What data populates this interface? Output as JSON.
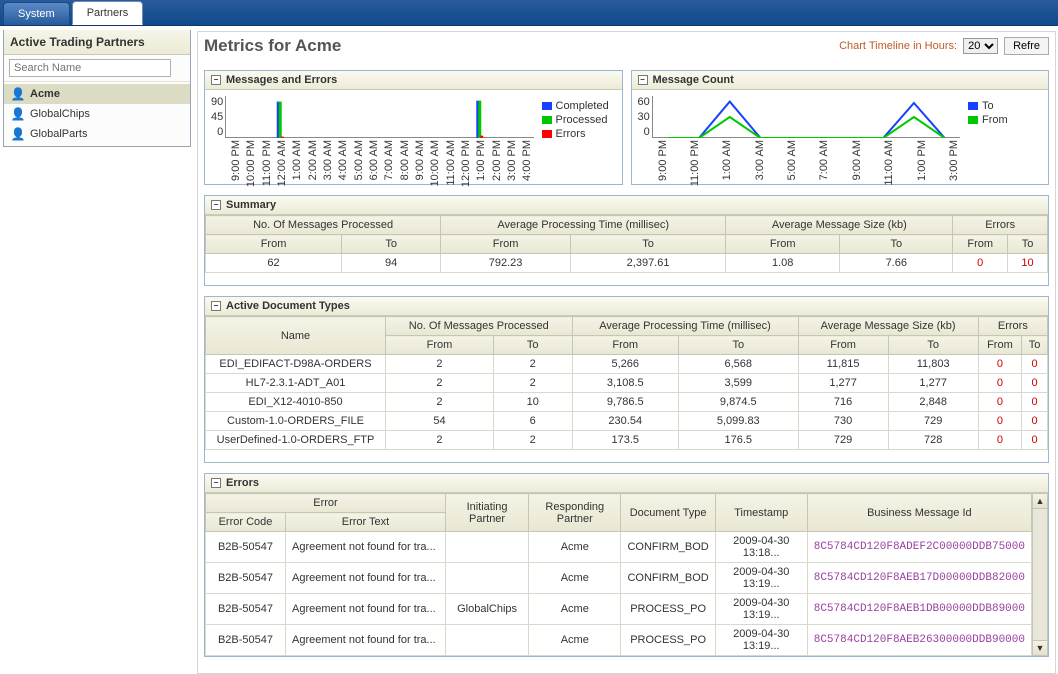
{
  "tabs": {
    "system": "System",
    "partners": "Partners"
  },
  "sidebar": {
    "title": "Active Trading Partners",
    "search_placeholder": "Search Name",
    "items": [
      {
        "label": "Acme",
        "selected": true
      },
      {
        "label": "GlobalChips",
        "selected": false
      },
      {
        "label": "GlobalParts",
        "selected": false
      }
    ]
  },
  "header": {
    "title": "Metrics for Acme",
    "timeline_label": "Chart Timeline in Hours:",
    "timeline_value": "20",
    "refresh_label": "Refre"
  },
  "charts": {
    "messages_errors": {
      "title": "Messages and Errors",
      "type": "bar",
      "y_ticks": [
        90,
        45,
        0
      ],
      "ylim": [
        0,
        90
      ],
      "x_labels": [
        "9:00 PM",
        "10:00 PM",
        "11:00 PM",
        "12:00 AM",
        "1:00 AM",
        "2:00 AM",
        "3:00 AM",
        "4:00 AM",
        "5:00 AM",
        "6:00 AM",
        "7:00 AM",
        "8:00 AM",
        "9:00 AM",
        "10:00 AM",
        "11:00 AM",
        "12:00 PM",
        "1:00 PM",
        "2:00 PM",
        "3:00 PM",
        "4:00 PM"
      ],
      "series": [
        {
          "name": "Completed",
          "color": "#1840ff",
          "points": {
            "3": 78,
            "16": 80
          }
        },
        {
          "name": "Processed",
          "color": "#00c800",
          "points": {
            "3": 78,
            "16": 80
          }
        },
        {
          "name": "Errors",
          "color": "#ff0000",
          "points": {
            "3": 3,
            "16": 5
          }
        }
      ],
      "background": "#ffffff",
      "font_size": 9
    },
    "message_count": {
      "title": "Message Count",
      "type": "line",
      "y_ticks": [
        60,
        30,
        0
      ],
      "ylim": [
        0,
        60
      ],
      "x_labels": [
        "9:00 PM",
        "11:00 PM",
        "1:00 AM",
        "3:00 AM",
        "5:00 AM",
        "7:00 AM",
        "9:00 AM",
        "11:00 AM",
        "1:00 PM",
        "3:00 PM"
      ],
      "series": [
        {
          "name": "To",
          "color": "#1840ff",
          "values": [
            0,
            0,
            52,
            0,
            0,
            0,
            0,
            0,
            50,
            0
          ]
        },
        {
          "name": "From",
          "color": "#00c800",
          "values": [
            0,
            0,
            30,
            0,
            0,
            0,
            0,
            0,
            30,
            0
          ]
        }
      ],
      "background": "#ffffff",
      "font_size": 9
    }
  },
  "summary": {
    "title": "Summary",
    "group_headers": [
      "No. Of Messages Processed",
      "Average Processing Time (millisec)",
      "Average Message Size (kb)",
      "Errors"
    ],
    "sub_headers": [
      "From",
      "To",
      "From",
      "To",
      "From",
      "To",
      "From",
      "To"
    ],
    "row": [
      "62",
      "94",
      "792.23",
      "2,397.61",
      "1.08",
      "7.66",
      "0",
      "10"
    ],
    "red_cols": [
      6,
      7
    ]
  },
  "doc_types": {
    "title": "Active Document Types",
    "group_headers": [
      "Name",
      "No. Of Messages Processed",
      "Average Processing Time (millisec)",
      "Average Message Size (kb)",
      "Errors"
    ],
    "sub_headers": [
      "",
      "From",
      "To",
      "From",
      "To",
      "From",
      "To",
      "From",
      "To"
    ],
    "rows": [
      [
        "EDI_EDIFACT-D98A-ORDERS",
        "2",
        "2",
        "5,266",
        "6,568",
        "11,815",
        "11,803",
        "0",
        "0"
      ],
      [
        "HL7-2.3.1-ADT_A01",
        "2",
        "2",
        "3,108.5",
        "3,599",
        "1,277",
        "1,277",
        "0",
        "0"
      ],
      [
        "EDI_X12-4010-850",
        "2",
        "10",
        "9,786.5",
        "9,874.5",
        "716",
        "2,848",
        "0",
        "0"
      ],
      [
        "Custom-1.0-ORDERS_FILE",
        "54",
        "6",
        "230.54",
        "5,099.83",
        "730",
        "729",
        "0",
        "0"
      ],
      [
        "UserDefined-1.0-ORDERS_FTP",
        "2",
        "2",
        "173.5",
        "176.5",
        "729",
        "728",
        "0",
        "0"
      ]
    ],
    "red_cols": [
      7,
      8
    ]
  },
  "errors": {
    "title": "Errors",
    "group_headers": [
      "Error",
      "Initiating Partner",
      "Responding Partner",
      "Document Type",
      "Timestamp",
      "Business Message Id"
    ],
    "sub_headers": [
      "Error Code",
      "Error Text"
    ],
    "rows": [
      [
        "B2B-50547",
        "Agreement not found for tra...",
        "",
        "Acme",
        "CONFIRM_BOD",
        "2009-04-30 13:18...",
        "8C5784CD120F8ADEF2C00000DDB75000"
      ],
      [
        "B2B-50547",
        "Agreement not found for tra...",
        "",
        "Acme",
        "CONFIRM_BOD",
        "2009-04-30 13:19...",
        "8C5784CD120F8AEB17D00000DDB82000"
      ],
      [
        "B2B-50547",
        "Agreement not found for tra...",
        "GlobalChips",
        "Acme",
        "PROCESS_PO",
        "2009-04-30 13:19...",
        "8C5784CD120F8AEB1DB00000DDB89000"
      ],
      [
        "B2B-50547",
        "Agreement not found for tra...",
        "",
        "Acme",
        "PROCESS_PO",
        "2009-04-30 13:19...",
        "8C5784CD120F8AEB26300000DDB90000"
      ]
    ]
  },
  "colors": {
    "accent_blue": "#1840ff",
    "accent_green": "#00c800",
    "accent_red": "#ff0000",
    "header_bg_start": "#f4f3e5",
    "header_bg_end": "#e9e7d3",
    "panel_border": "#9eb5d0",
    "link_purple": "#9b3fa0"
  }
}
